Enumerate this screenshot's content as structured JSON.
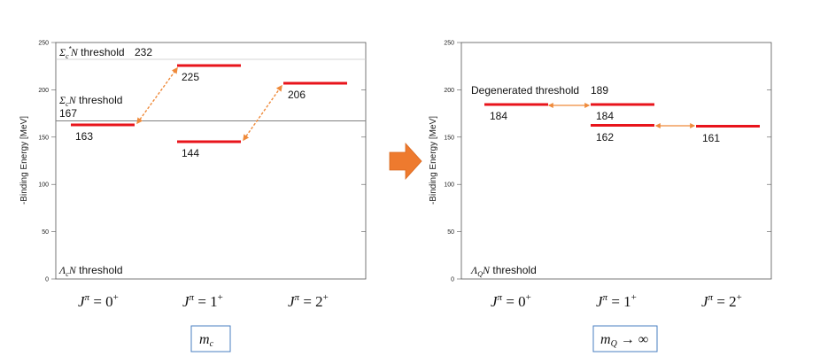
{
  "panels": [
    {
      "id": "left",
      "ylabel": "-Binding Energy [MeV]",
      "ylim": [
        0,
        250
      ],
      "yticks": [
        "0",
        "50",
        "100",
        "150",
        "200",
        "250"
      ],
      "thresholds": [
        {
          "label": "Σc*N threshold",
          "value": "232",
          "level": 232
        },
        {
          "label": "ΣcN threshold",
          "value": "167",
          "level": 167
        },
        {
          "label": "ΛcN threshold",
          "value": "",
          "level": 0
        }
      ],
      "levels": [
        {
          "jp": "0+",
          "value": 163,
          "label": "163"
        },
        {
          "jp": "1+",
          "value": 225,
          "label": "225"
        },
        {
          "jp": "1+",
          "value": 144,
          "label": "144"
        },
        {
          "jp": "2+",
          "value": 206,
          "label": "206"
        }
      ],
      "mixing": [
        [
          0,
          1
        ],
        [
          2,
          3
        ]
      ],
      "jp_labels": [
        "Jπ = 0+",
        "Jπ = 1+",
        "Jπ = 2+"
      ],
      "caption": "mc"
    },
    {
      "id": "right",
      "ylabel": "-Binding Energy [MeV]",
      "ylim": [
        0,
        250
      ],
      "yticks": [
        "0",
        "50",
        "100",
        "150",
        "200",
        "250"
      ],
      "thresholds": [
        {
          "label": "Degenerated threshold",
          "value": "189",
          "level": 189
        },
        {
          "label": "ΛQN threshold",
          "value": "",
          "level": 0
        }
      ],
      "levels": [
        {
          "jp": "0+",
          "value": 184,
          "label": "184"
        },
        {
          "jp": "1+",
          "value": 184,
          "label": "184"
        },
        {
          "jp": "1+",
          "value": 162,
          "label": "162"
        },
        {
          "jp": "2+",
          "value": 161,
          "label": "161"
        }
      ],
      "mixing": [
        [
          0,
          1
        ],
        [
          2,
          3
        ]
      ],
      "jp_labels": [
        "Jπ = 0+",
        "Jπ = 1+",
        "Jπ = 2+"
      ],
      "caption": "mQ → ∞"
    }
  ],
  "colors": {
    "level": "#e8141b",
    "mixing": "#ef8a3a",
    "arrow": "#ee7a2e",
    "caption_border": "#4a7fc1",
    "threshold_line": "#808080",
    "upper_threshold_line": "#c8c8c8"
  },
  "center_arrow_icon": "right-block-arrow-icon"
}
